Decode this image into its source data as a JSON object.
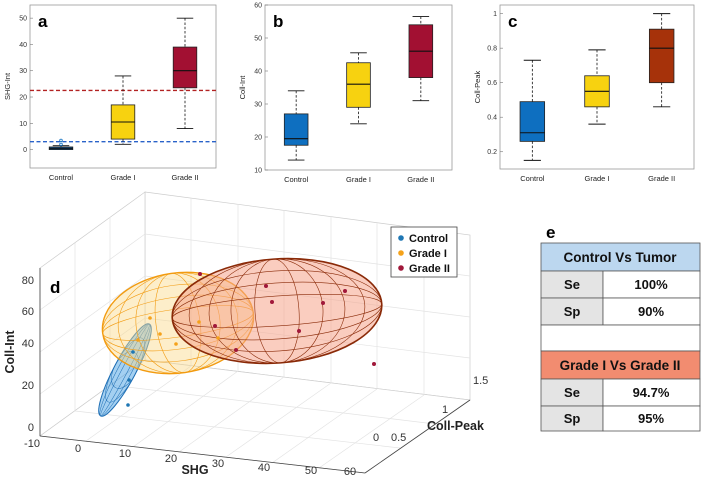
{
  "chart_data": [
    {
      "panel": "a",
      "type": "box",
      "categories": [
        "Control",
        "Grade I",
        "Grade II"
      ],
      "ylabel": "SHG-Int",
      "ylim": [
        -7,
        55
      ],
      "yticks": [
        0,
        10,
        20,
        30,
        40,
        50
      ],
      "boxes": [
        {
          "min": 0,
          "q1": 0,
          "median": 0.5,
          "q3": 1,
          "max": 1.5,
          "outliers": [
            2,
            3.5
          ]
        },
        {
          "min": 2,
          "q1": 4,
          "median": 10.5,
          "q3": 17,
          "max": 28,
          "outliers": []
        },
        {
          "min": 8,
          "q1": 23.5,
          "median": 30,
          "q3": 39,
          "max": 50,
          "outliers": []
        }
      ],
      "thresholds": [
        {
          "y": 22.5,
          "color": "#b22222"
        },
        {
          "y": 3,
          "color": "#2a62c9"
        }
      ],
      "colors": [
        "#0e6fc0",
        "#f7d210",
        "#a21032"
      ]
    },
    {
      "panel": "b",
      "type": "box",
      "categories": [
        "Control",
        "Grade I",
        "Grade II"
      ],
      "ylabel": "Coll-Int",
      "ylim": [
        10,
        60
      ],
      "yticks": [
        10,
        20,
        30,
        40,
        50,
        60
      ],
      "boxes": [
        {
          "min": 13,
          "q1": 17.5,
          "median": 19.5,
          "q3": 27,
          "max": 34,
          "outliers": []
        },
        {
          "min": 24,
          "q1": 29,
          "median": 36,
          "q3": 42.5,
          "max": 45.5,
          "outliers": []
        },
        {
          "min": 31,
          "q1": 38,
          "median": 46,
          "q3": 54,
          "max": 56.5,
          "outliers": []
        }
      ],
      "colors": [
        "#0e6fc0",
        "#f7d210",
        "#a21032"
      ]
    },
    {
      "panel": "c",
      "type": "box",
      "categories": [
        "Control",
        "Grade I",
        "Grade II"
      ],
      "ylabel": "Coll-Peak",
      "ylim": [
        0.1,
        1.05
      ],
      "yticks": [
        0.2,
        0.4,
        0.6,
        0.8,
        1
      ],
      "boxes": [
        {
          "min": 0.15,
          "q1": 0.26,
          "median": 0.31,
          "q3": 0.49,
          "max": 0.73,
          "outliers": []
        },
        {
          "min": 0.36,
          "q1": 0.46,
          "median": 0.55,
          "q3": 0.64,
          "max": 0.79,
          "outliers": []
        },
        {
          "min": 0.46,
          "q1": 0.6,
          "median": 0.8,
          "q3": 0.91,
          "max": 1.0,
          "outliers": []
        }
      ],
      "colors": [
        "#0e6fc0",
        "#f7d210",
        "#a6320a"
      ]
    },
    {
      "panel": "d",
      "type": "scatter3d",
      "xlabel": "SHG",
      "ylabel": "Coll-Peak",
      "zlabel": "Coll-Int",
      "xticks": [
        "-10",
        "0",
        "10",
        "20",
        "30",
        "40",
        "50",
        "60"
      ],
      "yticks": [
        "0",
        "0.5",
        "1",
        "1.5"
      ],
      "zticks": [
        "0",
        "20",
        "40",
        "60",
        "80"
      ],
      "legend": [
        "Control",
        "Grade I",
        "Grade II"
      ],
      "legend_colors": [
        "#1f77b4",
        "#f5a21a",
        "#a0183a"
      ],
      "legend_position": "top-right"
    }
  ],
  "table": {
    "panel": "e",
    "sections": [
      {
        "title": "Control Vs Tumor",
        "color": "#bcd7ef",
        "rows": [
          {
            "metric": "Se",
            "value": "100%"
          },
          {
            "metric": "Sp",
            "value": "90%"
          }
        ]
      },
      {
        "title": "Grade I Vs Grade II",
        "color": "#f28c70",
        "rows": [
          {
            "metric": "Se",
            "value": "94.7%"
          },
          {
            "metric": "Sp",
            "value": "95%"
          }
        ]
      }
    ]
  }
}
